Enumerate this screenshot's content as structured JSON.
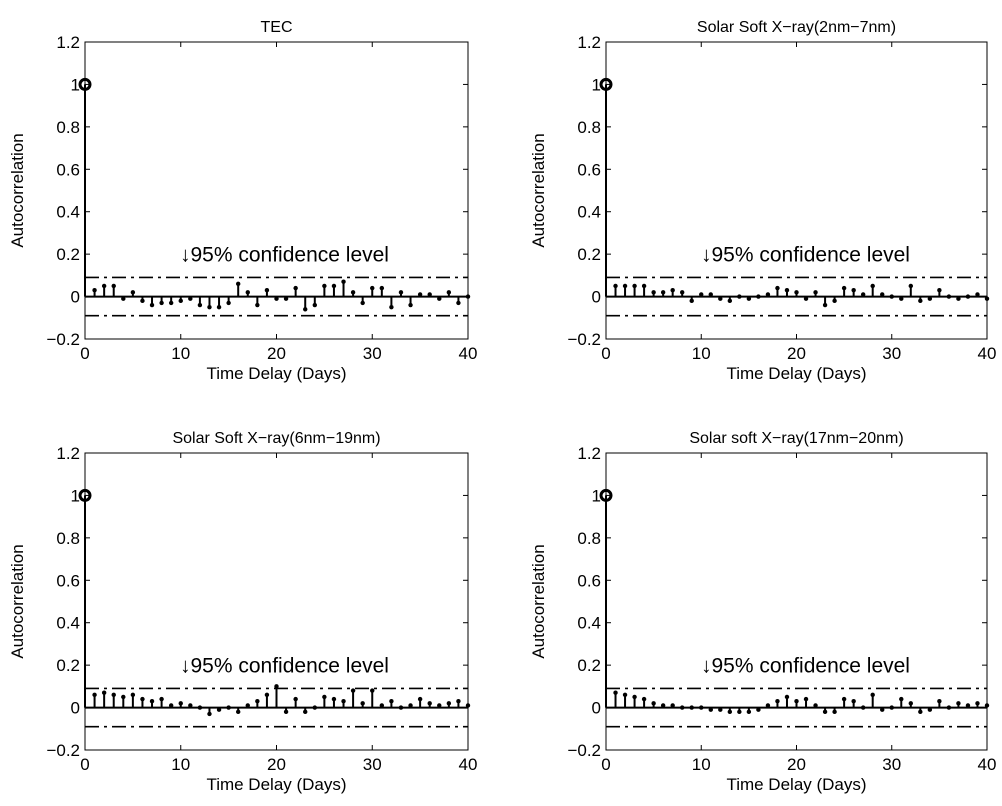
{
  "chart_data": [
    {
      "type": "stem",
      "title": "TEC",
      "xlabel": "Time Delay (Days)",
      "ylabel": "Autocorrelation",
      "xlim": [
        0,
        40
      ],
      "ylim": [
        -0.2,
        1.2
      ],
      "xticks": [
        "0",
        "10",
        "20",
        "30",
        "40"
      ],
      "yticks": [
        "−0.2",
        "0",
        "0.2",
        "0.4",
        "0.6",
        "0.8",
        "1",
        "1.2"
      ],
      "annotation": "↓95% confidence level",
      "confidence_level": [
        0.09,
        -0.09
      ],
      "lags": [
        0,
        1,
        2,
        3,
        4,
        5,
        6,
        7,
        8,
        9,
        10,
        11,
        12,
        13,
        14,
        15,
        16,
        17,
        18,
        19,
        20,
        21,
        22,
        23,
        24,
        25,
        26,
        27,
        28,
        29,
        30,
        31,
        32,
        33,
        34,
        35,
        36,
        37,
        38,
        39,
        40
      ],
      "values": [
        1.0,
        0.03,
        0.05,
        0.05,
        -0.01,
        0.02,
        -0.02,
        -0.04,
        -0.03,
        -0.03,
        -0.02,
        -0.01,
        -0.04,
        -0.05,
        -0.05,
        -0.03,
        0.06,
        0.02,
        -0.04,
        0.03,
        -0.01,
        -0.01,
        0.04,
        -0.06,
        -0.04,
        0.05,
        0.05,
        0.07,
        0.02,
        -0.03,
        0.04,
        0.04,
        -0.05,
        0.02,
        -0.04,
        0.01,
        0.01,
        -0.01,
        0.02,
        -0.03,
        0.0
      ]
    },
    {
      "type": "stem",
      "title": "Solar Soft X−ray(2nm−7nm)",
      "xlabel": "Time Delay (Days)",
      "ylabel": "Autocorrelation",
      "xlim": [
        0,
        40
      ],
      "ylim": [
        -0.2,
        1.2
      ],
      "xticks": [
        "0",
        "10",
        "20",
        "30",
        "40"
      ],
      "yticks": [
        "−0.2",
        "0",
        "0.2",
        "0.4",
        "0.6",
        "0.8",
        "1",
        "1.2"
      ],
      "annotation": "↓95% confidence level",
      "confidence_level": [
        0.09,
        -0.09
      ],
      "lags": [
        0,
        1,
        2,
        3,
        4,
        5,
        6,
        7,
        8,
        9,
        10,
        11,
        12,
        13,
        14,
        15,
        16,
        17,
        18,
        19,
        20,
        21,
        22,
        23,
        24,
        25,
        26,
        27,
        28,
        29,
        30,
        31,
        32,
        33,
        34,
        35,
        36,
        37,
        38,
        39,
        40
      ],
      "values": [
        1.0,
        0.05,
        0.05,
        0.05,
        0.05,
        0.02,
        0.02,
        0.03,
        0.02,
        -0.02,
        0.01,
        0.01,
        -0.01,
        -0.02,
        0.0,
        -0.01,
        0.0,
        0.01,
        0.04,
        0.03,
        0.02,
        -0.01,
        0.02,
        -0.04,
        -0.02,
        0.04,
        0.03,
        0.01,
        0.05,
        0.01,
        0.0,
        -0.01,
        0.05,
        -0.02,
        -0.01,
        0.03,
        0.0,
        -0.01,
        0.0,
        0.01,
        -0.01
      ]
    },
    {
      "type": "stem",
      "title": "Solar Soft X−ray(6nm−19nm)",
      "xlabel": "Time Delay (Days)",
      "ylabel": "Autocorrelation",
      "xlim": [
        0,
        40
      ],
      "ylim": [
        -0.2,
        1.2
      ],
      "xticks": [
        "0",
        "10",
        "20",
        "30",
        "40"
      ],
      "yticks": [
        "−0.2",
        "0",
        "0.2",
        "0.4",
        "0.6",
        "0.8",
        "1",
        "1.2"
      ],
      "annotation": "↓95% confidence level",
      "confidence_level": [
        0.09,
        -0.09
      ],
      "lags": [
        0,
        1,
        2,
        3,
        4,
        5,
        6,
        7,
        8,
        9,
        10,
        11,
        12,
        13,
        14,
        15,
        16,
        17,
        18,
        19,
        20,
        21,
        22,
        23,
        24,
        25,
        26,
        27,
        28,
        29,
        30,
        31,
        32,
        33,
        34,
        35,
        36,
        37,
        38,
        39,
        40
      ],
      "values": [
        1.0,
        0.06,
        0.07,
        0.06,
        0.05,
        0.06,
        0.04,
        0.03,
        0.04,
        0.01,
        0.02,
        0.01,
        0.0,
        -0.03,
        -0.01,
        0.0,
        -0.02,
        0.01,
        0.03,
        0.06,
        0.1,
        -0.02,
        0.04,
        -0.02,
        0.0,
        0.05,
        0.04,
        0.03,
        0.08,
        0.02,
        0.08,
        0.01,
        0.03,
        0.0,
        0.01,
        0.04,
        0.02,
        0.01,
        0.02,
        0.03,
        0.01
      ]
    },
    {
      "type": "stem",
      "title": "Solar soft X−ray(17nm−20nm)",
      "xlabel": "Time Delay (Days)",
      "ylabel": "Autocorrelation",
      "xlim": [
        0,
        40
      ],
      "ylim": [
        -0.2,
        1.2
      ],
      "xticks": [
        "0",
        "10",
        "20",
        "30",
        "40"
      ],
      "yticks": [
        "−0.2",
        "0",
        "0.2",
        "0.4",
        "0.6",
        "0.8",
        "1",
        "1.2"
      ],
      "annotation": "↓95% confidence level",
      "confidence_level": [
        0.09,
        -0.09
      ],
      "lags": [
        0,
        1,
        2,
        3,
        4,
        5,
        6,
        7,
        8,
        9,
        10,
        11,
        12,
        13,
        14,
        15,
        16,
        17,
        18,
        19,
        20,
        21,
        22,
        23,
        24,
        25,
        26,
        27,
        28,
        29,
        30,
        31,
        32,
        33,
        34,
        35,
        36,
        37,
        38,
        39,
        40
      ],
      "values": [
        1.0,
        0.07,
        0.06,
        0.05,
        0.04,
        0.02,
        0.01,
        0.01,
        0.0,
        0.0,
        0.0,
        -0.01,
        -0.01,
        -0.02,
        -0.02,
        -0.02,
        -0.01,
        0.01,
        0.03,
        0.05,
        0.03,
        0.04,
        0.01,
        -0.02,
        -0.02,
        0.04,
        0.03,
        0.0,
        0.06,
        -0.01,
        0.0,
        0.04,
        0.02,
        -0.02,
        -0.01,
        0.03,
        0.0,
        0.02,
        0.01,
        0.02,
        0.01
      ]
    }
  ]
}
